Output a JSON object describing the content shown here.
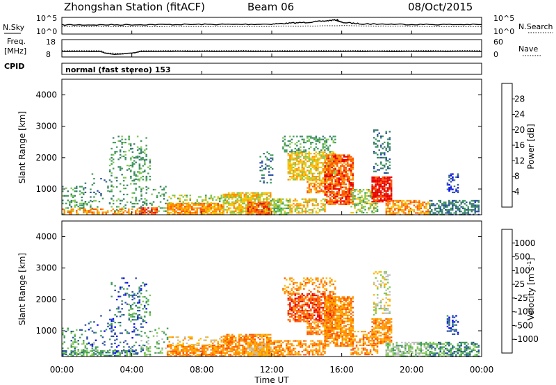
{
  "header": {
    "station": "Zhongshan Station (fitACF)",
    "beam": "Beam 06",
    "date": "08/Oct/2015"
  },
  "top_panels": {
    "nsky_label": "N.Sky",
    "nsky_ticks": [
      "10^5",
      "10^0"
    ],
    "nsearch_label": "N.Search",
    "nsearch_ticks": [
      "10^5",
      "10^0"
    ],
    "freq_label_line1": "Freq.",
    "freq_label_line2": "[MHz]",
    "freq_ticks": [
      "18",
      "8"
    ],
    "nave_label": "Nave",
    "nave_ticks": [
      "60",
      "0"
    ],
    "cpid_label": "CPID",
    "cpid_text": "normal (fast stereo) 153"
  },
  "axes": {
    "y_label": "Slant Range [km]",
    "y_ticks": [
      "4000",
      "3000",
      "2000",
      "1000"
    ],
    "x_label": "Time UT",
    "x_ticks": [
      "00:00",
      "04:00",
      "08:00",
      "12:00",
      "16:00",
      "20:00",
      "00:00"
    ]
  },
  "colors": {
    "power": [
      "#0000ff",
      "#2b4fa6",
      "#3a7a6e",
      "#3f9c5a",
      "#7ec850",
      "#f2c200",
      "#ff8c00",
      "#ff5500",
      "#e80000"
    ],
    "velocity": [
      "#e80000",
      "#ff5500",
      "#ff8c00",
      "#ffb400",
      "#c0c0c0",
      "#7ec850",
      "#3f9c5a",
      "#2b4fa6",
      "#0000ff"
    ]
  },
  "chart_data": [
    {
      "type": "line",
      "title": "N.Sky / N.Search",
      "xlim": [
        0,
        24
      ],
      "ylim_label": [
        "10^0",
        "10^5"
      ],
      "series": [
        {
          "name": "N.Sky",
          "x": [
            0,
            2,
            4,
            6,
            8,
            10,
            12,
            13,
            14,
            15,
            15.7,
            16,
            17,
            18,
            20,
            22,
            24
          ],
          "y": [
            0.55,
            0.55,
            0.56,
            0.57,
            0.58,
            0.58,
            0.6,
            0.65,
            0.7,
            0.78,
            0.85,
            0.7,
            0.62,
            0.6,
            0.58,
            0.57,
            0.57
          ]
        },
        {
          "name": "N.Search",
          "x": [
            0,
            4,
            8,
            12,
            16,
            20,
            24
          ],
          "y": [
            0.45,
            0.45,
            0.45,
            0.46,
            0.5,
            0.46,
            0.45
          ]
        }
      ]
    },
    {
      "type": "line",
      "title": "Freq. / Nave",
      "xlim": [
        0,
        24
      ],
      "freq_ylim": [
        8,
        18
      ],
      "nave_ylim": [
        0,
        60
      ],
      "series": [
        {
          "name": "Freq.",
          "x": [
            0,
            2.2,
            2.5,
            3.0,
            3.5,
            4.2,
            4.5,
            8,
            12,
            16,
            20,
            24
          ],
          "y": [
            11.2,
            11.2,
            10.2,
            9.5,
            9.8,
            10.5,
            11.2,
            11.2,
            11.2,
            11.2,
            11.2,
            11.2
          ]
        },
        {
          "name": "Nave",
          "x": [
            0,
            2.2,
            2.5,
            3.5,
            4.2,
            4.5,
            8,
            12,
            16,
            20,
            24
          ],
          "y": [
            22,
            22,
            14,
            12,
            14,
            22,
            22,
            22,
            22,
            22,
            22
          ]
        }
      ]
    },
    {
      "type": "heatmap",
      "title": "Power",
      "colorbar_label": "Power [dB]",
      "colorbar_ticks": [
        "28",
        "24",
        "20",
        "16",
        "12",
        "8",
        "4"
      ],
      "xlabel": "",
      "ylabel": "Slant Range [km]",
      "xlim_hours": [
        0,
        24
      ],
      "ylim_km": [
        180,
        4500
      ],
      "blocks": [
        {
          "t": [
            0.0,
            1.2
          ],
          "r": [
            200,
            1100
          ],
          "bin": 3,
          "fill": 0.22
        },
        {
          "t": [
            0.0,
            4.3
          ],
          "r": [
            200,
            380
          ],
          "bin": 6,
          "fill": 0.55
        },
        {
          "t": [
            0.5,
            2.0
          ],
          "r": [
            380,
            650
          ],
          "bin": 3,
          "fill": 0.3
        },
        {
          "t": [
            1.3,
            3.0
          ],
          "r": [
            500,
            1500
          ],
          "bin": 2,
          "fill": 0.1
        },
        {
          "t": [
            2.7,
            4.8
          ],
          "r": [
            300,
            2700
          ],
          "bin": 3,
          "fill": 0.16
        },
        {
          "t": [
            3.8,
            5.0
          ],
          "r": [
            1300,
            2300
          ],
          "bin": 3,
          "fill": 0.2
        },
        {
          "t": [
            4.5,
            6.0
          ],
          "r": [
            200,
            1100
          ],
          "bin": 3,
          "fill": 0.2
        },
        {
          "t": [
            4.4,
            5.4
          ],
          "r": [
            200,
            420
          ],
          "bin": 7,
          "fill": 0.7
        },
        {
          "t": [
            6.0,
            9.2
          ],
          "r": [
            200,
            560
          ],
          "bin": 6,
          "fill": 0.8
        },
        {
          "t": [
            6.1,
            9.5
          ],
          "r": [
            560,
            820
          ],
          "bin": 4,
          "fill": 0.35
        },
        {
          "t": [
            9.2,
            11.9
          ],
          "r": [
            200,
            900
          ],
          "bin": 5,
          "fill": 0.75
        },
        {
          "t": [
            10.6,
            11.9
          ],
          "r": [
            200,
            600
          ],
          "bin": 7,
          "fill": 0.8
        },
        {
          "t": [
            11.8,
            12.5
          ],
          "r": [
            200,
            700
          ],
          "bin": 4,
          "fill": 0.45
        },
        {
          "t": [
            11.3,
            12.0
          ],
          "r": [
            1200,
            2200
          ],
          "bin": 2,
          "fill": 0.2
        },
        {
          "t": [
            12.0,
            13.0
          ],
          "r": [
            200,
            700
          ],
          "bin": 4,
          "fill": 0.5
        },
        {
          "t": [
            12.9,
            15.6
          ],
          "r": [
            1300,
            2200
          ],
          "bin": 5,
          "fill": 0.7
        },
        {
          "t": [
            12.6,
            15.6
          ],
          "r": [
            2200,
            2700
          ],
          "bin": 3,
          "fill": 0.35
        },
        {
          "t": [
            14.0,
            15.4
          ],
          "r": [
            900,
            1300
          ],
          "bin": 6,
          "fill": 0.6
        },
        {
          "t": [
            15.0,
            16.6
          ],
          "r": [
            500,
            2100
          ],
          "bin": 7,
          "fill": 0.75
        },
        {
          "t": [
            13.0,
            15.0
          ],
          "r": [
            250,
            700
          ],
          "bin": 5,
          "fill": 0.55
        },
        {
          "t": [
            16.5,
            18.0
          ],
          "r": [
            250,
            1000
          ],
          "bin": 4,
          "fill": 0.5
        },
        {
          "t": [
            17.7,
            18.8
          ],
          "r": [
            600,
            1400
          ],
          "bin": 8,
          "fill": 0.85
        },
        {
          "t": [
            17.8,
            18.7
          ],
          "r": [
            1500,
            2900
          ],
          "bin": 2,
          "fill": 0.3
        },
        {
          "t": [
            18.5,
            21.0
          ],
          "r": [
            200,
            650
          ],
          "bin": 6,
          "fill": 0.6
        },
        {
          "t": [
            21.0,
            23.8
          ],
          "r": [
            200,
            650
          ],
          "bin": 2,
          "fill": 0.55
        },
        {
          "t": [
            22.0,
            22.6
          ],
          "r": [
            900,
            1500
          ],
          "bin": 1,
          "fill": 0.45
        }
      ]
    },
    {
      "type": "heatmap",
      "title": "Velocity",
      "colorbar_label": "Velocity [m s^-1]",
      "colorbar_ticks": [
        "1000",
        "500",
        "100",
        "25",
        "-25",
        "-100",
        "-500",
        "-1000"
      ],
      "xlabel": "Time UT",
      "ylabel": "Slant Range [km]",
      "xlim_hours": [
        0,
        24
      ],
      "ylim_km": [
        180,
        4500
      ],
      "blocks": [
        {
          "t": [
            0.0,
            1.2
          ],
          "r": [
            200,
            1100
          ],
          "bin": 6,
          "fill": 0.2
        },
        {
          "t": [
            0.0,
            4.3
          ],
          "r": [
            200,
            380
          ],
          "bin": 6,
          "fill": 0.55
        },
        {
          "t": [
            0.5,
            2.0
          ],
          "r": [
            380,
            650
          ],
          "bin": 5,
          "fill": 0.3
        },
        {
          "t": [
            1.3,
            3.0
          ],
          "r": [
            500,
            1500
          ],
          "bin": 7,
          "fill": 0.1
        },
        {
          "t": [
            2.7,
            4.8
          ],
          "r": [
            300,
            2700
          ],
          "bin": 7,
          "fill": 0.15
        },
        {
          "t": [
            3.8,
            5.0
          ],
          "r": [
            1300,
            2300
          ],
          "bin": 6,
          "fill": 0.2
        },
        {
          "t": [
            4.5,
            6.0
          ],
          "r": [
            200,
            1100
          ],
          "bin": 5,
          "fill": 0.2
        },
        {
          "t": [
            6.0,
            9.2
          ],
          "r": [
            200,
            560
          ],
          "bin": 2,
          "fill": 0.8
        },
        {
          "t": [
            6.1,
            9.5
          ],
          "r": [
            560,
            820
          ],
          "bin": 3,
          "fill": 0.35
        },
        {
          "t": [
            9.2,
            11.9
          ],
          "r": [
            200,
            900
          ],
          "bin": 2,
          "fill": 0.75
        },
        {
          "t": [
            10.6,
            11.9
          ],
          "r": [
            200,
            600
          ],
          "bin": 3,
          "fill": 0.8
        },
        {
          "t": [
            11.8,
            12.5
          ],
          "r": [
            200,
            700
          ],
          "bin": 2,
          "fill": 0.45
        },
        {
          "t": [
            12.0,
            13.0
          ],
          "r": [
            200,
            700
          ],
          "bin": 2,
          "fill": 0.5
        },
        {
          "t": [
            12.9,
            15.6
          ],
          "r": [
            1300,
            2200
          ],
          "bin": 1,
          "fill": 0.7
        },
        {
          "t": [
            12.6,
            15.6
          ],
          "r": [
            2200,
            2700
          ],
          "bin": 2,
          "fill": 0.35
        },
        {
          "t": [
            14.0,
            15.4
          ],
          "r": [
            900,
            1300
          ],
          "bin": 2,
          "fill": 0.6
        },
        {
          "t": [
            15.0,
            16.6
          ],
          "r": [
            500,
            2100
          ],
          "bin": 2,
          "fill": 0.75
        },
        {
          "t": [
            13.0,
            15.0
          ],
          "r": [
            250,
            700
          ],
          "bin": 2,
          "fill": 0.55
        },
        {
          "t": [
            16.5,
            18.0
          ],
          "r": [
            250,
            1000
          ],
          "bin": 2,
          "fill": 0.5
        },
        {
          "t": [
            17.7,
            18.8
          ],
          "r": [
            600,
            1400
          ],
          "bin": 2,
          "fill": 0.7
        },
        {
          "t": [
            17.8,
            18.7
          ],
          "r": [
            1500,
            2900
          ],
          "bin": 4,
          "fill": 0.3
        },
        {
          "t": [
            18.5,
            21.0
          ],
          "r": [
            200,
            650
          ],
          "bin": 5,
          "fill": 0.6
        },
        {
          "t": [
            21.0,
            23.8
          ],
          "r": [
            200,
            650
          ],
          "bin": 6,
          "fill": 0.55
        },
        {
          "t": [
            22.0,
            22.6
          ],
          "r": [
            900,
            1500
          ],
          "bin": 7,
          "fill": 0.45
        }
      ]
    }
  ]
}
